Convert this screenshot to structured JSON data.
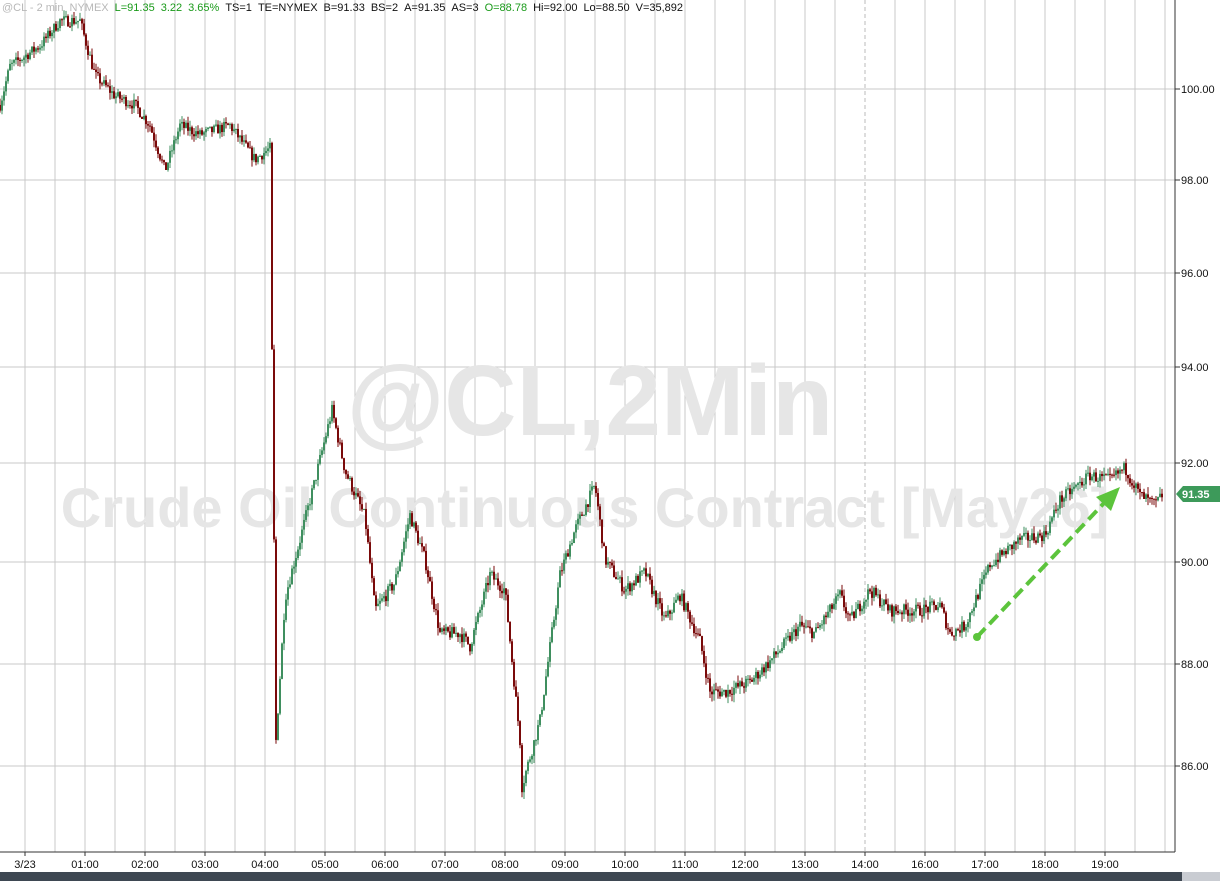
{
  "header": {
    "symbol": "@CL - 2 min",
    "exchange": "NYMEX",
    "last": "L=91.35",
    "change": "3.22",
    "change_pct": "3.65%",
    "ts": "TS=1",
    "te": "TE=NYMEX",
    "bid": "B=91.33",
    "bid_size": "BS=2",
    "ask": "A=91.35",
    "ask_size": "AS=3",
    "open": "O=88.78",
    "high": "Hi=92.00",
    "low": "Lo=88.50",
    "volume": "V=35,892"
  },
  "chart_data": {
    "type": "candlestick",
    "watermark_line1": "@CL,2Min",
    "watermark_line2": "Crude Oil Continuous Contract [May26]",
    "y_ticks": [
      "100.00",
      "98.00",
      "96.00",
      "94.00",
      "92.00",
      "90.00",
      "88.00",
      "86.00"
    ],
    "x_ticks": [
      "3/23",
      "01:00",
      "02:00",
      "03:00",
      "04:00",
      "05:00",
      "06:00",
      "07:00",
      "08:00",
      "09:00",
      "10:00",
      "11:00",
      "12:00",
      "13:00",
      "14:00",
      "16:00",
      "17:00",
      "18:00",
      "19:00"
    ],
    "last_price_label": "91.35",
    "grid": true,
    "colors": {
      "up": "#3f8f5f",
      "down": "#7a0a0a",
      "arrow": "#5cc43c",
      "last_label": "#3d9a5a"
    },
    "annotation": "green dashed up arrow from 17:00 to 19:20",
    "price_path": [
      [
        "23:35",
        99.65
      ],
      [
        "23:45",
        100.5
      ],
      [
        "00:15",
        100.95
      ],
      [
        "00:35",
        101.5
      ],
      [
        "00:55",
        101.5
      ],
      [
        "01:10",
        100.3
      ],
      [
        "01:30",
        99.85
      ],
      [
        "01:50",
        99.65
      ],
      [
        "02:05",
        99.2
      ],
      [
        "02:20",
        98.2
      ],
      [
        "02:35",
        99.2
      ],
      [
        "02:55",
        99.0
      ],
      [
        "03:25",
        99.2
      ],
      [
        "03:50",
        98.45
      ],
      [
        "04:05",
        98.7
      ],
      [
        "04:07",
        94.3
      ],
      [
        "04:11",
        86.5
      ],
      [
        "04:20",
        89.3
      ],
      [
        "04:35",
        90.45
      ],
      [
        "04:50",
        91.65
      ],
      [
        "05:07",
        93.1
      ],
      [
        "05:20",
        91.85
      ],
      [
        "05:40",
        90.9
      ],
      [
        "05:50",
        89.05
      ],
      [
        "06:10",
        89.6
      ],
      [
        "06:25",
        90.95
      ],
      [
        "06:40",
        90.05
      ],
      [
        "06:55",
        88.6
      ],
      [
        "07:15",
        88.6
      ],
      [
        "07:25",
        88.35
      ],
      [
        "07:45",
        89.75
      ],
      [
        "08:00",
        89.45
      ],
      [
        "08:15",
        86.5
      ],
      [
        "08:17",
        85.6
      ],
      [
        "08:35",
        86.9
      ],
      [
        "08:55",
        89.75
      ],
      [
        "09:10",
        90.65
      ],
      [
        "09:30",
        91.55
      ],
      [
        "09:40",
        90.05
      ],
      [
        "10:00",
        89.45
      ],
      [
        "10:20",
        89.8
      ],
      [
        "10:40",
        88.85
      ],
      [
        "10:55",
        89.35
      ],
      [
        "11:15",
        88.45
      ],
      [
        "11:25",
        87.45
      ],
      [
        "11:40",
        87.45
      ],
      [
        "12:05",
        87.65
      ],
      [
        "12:25",
        88.05
      ],
      [
        "12:55",
        88.75
      ],
      [
        "13:10",
        88.6
      ],
      [
        "13:35",
        89.35
      ],
      [
        "13:45",
        88.85
      ],
      [
        "15:05",
        89.45
      ],
      [
        "15:25",
        89.05
      ],
      [
        "15:55",
        89.05
      ],
      [
        "16:15",
        89.15
      ],
      [
        "16:25",
        88.6
      ],
      [
        "16:40",
        88.75
      ],
      [
        "17:05",
        89.95
      ],
      [
        "17:35",
        90.45
      ],
      [
        "18:00",
        90.55
      ],
      [
        "18:15",
        91.25
      ],
      [
        "18:45",
        91.75
      ],
      [
        "19:05",
        91.65
      ],
      [
        "19:20",
        91.9
      ],
      [
        "19:35",
        91.35
      ],
      [
        "19:50",
        91.15
      ],
      [
        "19:57",
        91.35
      ]
    ]
  }
}
